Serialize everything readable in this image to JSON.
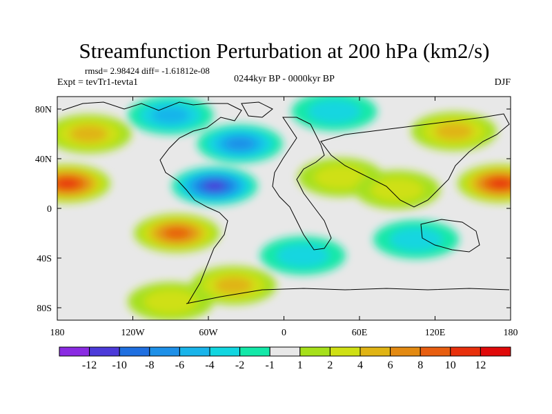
{
  "chart_data": {
    "type": "heatmap",
    "title": "Streamfunction Perturbation at 200 hPa (km2/s)",
    "stats": "rmsd= 2.98424 diff= -1.61812e-08",
    "experiment": "Expt = tevTr1-tevta1",
    "period": "0244kyr BP - 0000kyr BP",
    "season": "DJF",
    "x_ticks": [
      "180",
      "120W",
      "60W",
      "0",
      "60E",
      "120E",
      "180"
    ],
    "x_values": [
      -180,
      -120,
      -60,
      0,
      60,
      120,
      180
    ],
    "y_ticks": [
      "80N",
      "40N",
      "0",
      "40S",
      "80S"
    ],
    "y_values": [
      80,
      40,
      0,
      -40,
      -80
    ],
    "xlim": [
      -180,
      180
    ],
    "ylim": [
      -90,
      90
    ],
    "colorbar_labels": [
      "-12",
      "-10",
      "-8",
      "-6",
      "-4",
      "-2",
      "-1",
      "1",
      "2",
      "4",
      "6",
      "8",
      "10",
      "12"
    ],
    "colorbar_colors": [
      "#8a2be2",
      "#4c3ad9",
      "#1f6fe0",
      "#1e90e8",
      "#19b4ea",
      "#12d6e0",
      "#13e8a8",
      "#e8e8e8",
      "#a6e01a",
      "#cfe014",
      "#e0b414",
      "#e38a12",
      "#e85e10",
      "#e8300c",
      "#e00a0a"
    ],
    "features": [
      {
        "name": "positive-north-pacific",
        "lon": -155,
        "lat": 60,
        "value": 4
      },
      {
        "name": "positive-east-pacific-max",
        "lon": -172,
        "lat": 20,
        "value": 10
      },
      {
        "name": "negative-tropical-americas-min",
        "lon": -55,
        "lat": 18,
        "value": -10
      },
      {
        "name": "negative-north-atlantic",
        "lon": -35,
        "lat": 52,
        "value": -6
      },
      {
        "name": "negative-arctic-canada",
        "lon": -90,
        "lat": 75,
        "value": -4
      },
      {
        "name": "positive-south-pacific-max",
        "lon": -85,
        "lat": -20,
        "value": 8
      },
      {
        "name": "positive-south-atlantic",
        "lon": -40,
        "lat": -62,
        "value": 4
      },
      {
        "name": "positive-southern-ocean",
        "lon": -90,
        "lat": -75,
        "value": 2
      },
      {
        "name": "positive-west-pacific-max",
        "lon": 172,
        "lat": 20,
        "value": 10
      },
      {
        "name": "positive-north-asia",
        "lon": 135,
        "lat": 62,
        "value": 4
      },
      {
        "name": "positive-arabia",
        "lon": 45,
        "lat": 25,
        "value": 2
      },
      {
        "name": "positive-indian-ocean",
        "lon": 90,
        "lat": 15,
        "value": 2
      },
      {
        "name": "negative-south-indian-ocean",
        "lon": 105,
        "lat": -25,
        "value": -2
      },
      {
        "name": "negative-arctic-europe",
        "lon": 40,
        "lat": 78,
        "value": -2
      },
      {
        "name": "negative-south-atlantic",
        "lon": 15,
        "lat": -38,
        "value": -2
      }
    ]
  }
}
